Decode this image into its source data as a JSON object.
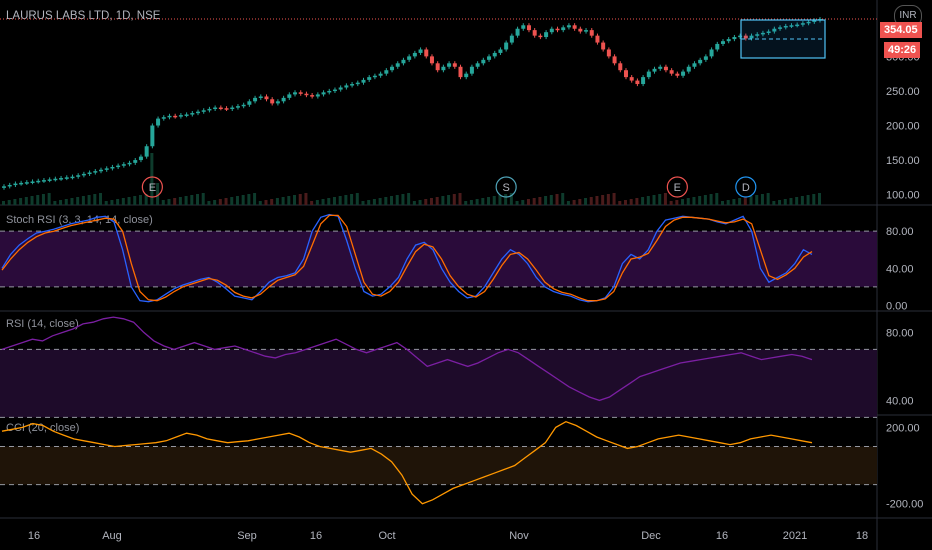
{
  "header": {
    "symbol_title": "LAURUS LABS LTD, 1D, NSE",
    "currency_button": "INR",
    "last_price_badge": "354.05",
    "countdown_badge": "49:26"
  },
  "colors": {
    "up": "#26a69a",
    "down": "#ef5350",
    "stoch_k": "#2962ff",
    "stoch_d": "#ff6d00",
    "rsi_line": "#7b1fa2",
    "cci_line": "#ff9800",
    "stoch_band": "#2a0b3a",
    "rsi_band": "#1e0b2a",
    "cci_band": "#1f1408",
    "rectangle": "#4fc3f7"
  },
  "main": {
    "price_axis_ticks": [
      "300.00",
      "250.00",
      "200.00",
      "150.00",
      "100.00"
    ],
    "events": [
      {
        "label": "E",
        "color": "#ef5350",
        "date_index": 26
      },
      {
        "label": "S",
        "color": "#4fa3b8",
        "date_index": 88
      },
      {
        "label": "E",
        "color": "#ef5350",
        "date_index": 118
      },
      {
        "label": "D",
        "color": "#2196f3",
        "date_index": 130
      }
    ]
  },
  "stoch_pane": {
    "title": "Stoch RSI (3, 3, 14, 14, close)",
    "ticks": [
      "80.00",
      "40.00",
      "0.00"
    ]
  },
  "rsi_pane": {
    "title": "RSI (14, close)",
    "ticks": [
      "80.00",
      "40.00"
    ]
  },
  "cci_pane": {
    "title": "CCI (20, close)",
    "ticks": [
      "200.00",
      "-200.00"
    ]
  },
  "time_axis": {
    "labels": [
      "16",
      "Aug",
      "Sep",
      "16",
      "Oct",
      "Nov",
      "Dec",
      "16",
      "2021",
      "18"
    ]
  },
  "chart_data": {
    "type": "candlestick",
    "title": "LAURUS LABS LTD, 1D, NSE",
    "ylim": [
      85,
      370
    ],
    "close": [
      112,
      114,
      116,
      117,
      118,
      119,
      120,
      121,
      122,
      123,
      124,
      125,
      126,
      128,
      130,
      132,
      134,
      136,
      138,
      140,
      142,
      144,
      146,
      150,
      155,
      170,
      200,
      210,
      212,
      214,
      213,
      215,
      216,
      218,
      220,
      222,
      224,
      226,
      225,
      224,
      226,
      228,
      230,
      235,
      240,
      242,
      238,
      232,
      235,
      240,
      245,
      248,
      246,
      244,
      242,
      245,
      248,
      250,
      252,
      255,
      258,
      260,
      262,
      266,
      270,
      272,
      275,
      280,
      285,
      290,
      295,
      300,
      305,
      310,
      300,
      290,
      280,
      285,
      290,
      285,
      270,
      275,
      285,
      290,
      295,
      300,
      305,
      310,
      320,
      330,
      340,
      345,
      338,
      330,
      328,
      335,
      340,
      338,
      342,
      345,
      340,
      336,
      338,
      330,
      320,
      310,
      300,
      290,
      280,
      270,
      265,
      260,
      270,
      278,
      282,
      285,
      280,
      275,
      272,
      278,
      285,
      290,
      295,
      300,
      310,
      318,
      322,
      325,
      328,
      330,
      326,
      330,
      332,
      334,
      336,
      340,
      342,
      344,
      345,
      346,
      348,
      350,
      352,
      354
    ],
    "stoch_rsi_k": [
      40,
      55,
      65,
      72,
      78,
      80,
      82,
      85,
      88,
      90,
      92,
      95,
      96,
      90,
      60,
      20,
      5,
      4,
      6,
      12,
      18,
      22,
      25,
      28,
      30,
      25,
      18,
      10,
      8,
      6,
      15,
      25,
      30,
      32,
      35,
      50,
      80,
      95,
      98,
      96,
      70,
      40,
      15,
      10,
      12,
      20,
      30,
      50,
      65,
      68,
      60,
      40,
      25,
      15,
      8,
      10,
      20,
      35,
      50,
      60,
      55,
      45,
      30,
      20,
      15,
      12,
      10,
      6,
      4,
      5,
      8,
      20,
      45,
      55,
      50,
      60,
      80,
      92,
      94,
      96,
      95,
      94,
      93,
      90,
      88,
      92,
      96,
      80,
      40,
      25,
      30,
      35,
      45,
      60,
      55
    ],
    "stoch_rsi_d": [
      38,
      50,
      60,
      68,
      74,
      78,
      80,
      83,
      86,
      88,
      90,
      92,
      94,
      93,
      80,
      45,
      15,
      6,
      5,
      9,
      15,
      20,
      23,
      26,
      29,
      27,
      22,
      14,
      10,
      8,
      12,
      20,
      27,
      30,
      33,
      42,
      65,
      88,
      97,
      97,
      85,
      55,
      25,
      12,
      10,
      15,
      25,
      42,
      58,
      66,
      63,
      50,
      32,
      20,
      12,
      9,
      15,
      28,
      43,
      55,
      57,
      50,
      38,
      25,
      18,
      14,
      12,
      8,
      5,
      5,
      7,
      15,
      35,
      50,
      52,
      56,
      70,
      85,
      92,
      95,
      95,
      94,
      93,
      91,
      89,
      90,
      93,
      88,
      60,
      32,
      28,
      33,
      40,
      52,
      58
    ],
    "rsi": [
      70,
      72,
      74,
      76,
      75,
      78,
      80,
      82,
      85,
      86,
      88,
      89,
      88,
      86,
      80,
      75,
      72,
      70,
      72,
      74,
      72,
      70,
      71,
      72,
      70,
      68,
      66,
      65,
      67,
      68,
      70,
      72,
      74,
      76,
      73,
      70,
      68,
      70,
      72,
      74,
      70,
      65,
      60,
      62,
      64,
      62,
      60,
      62,
      65,
      68,
      70,
      68,
      64,
      60,
      56,
      52,
      48,
      45,
      42,
      40,
      42,
      46,
      50,
      54,
      56,
      58,
      60,
      62,
      63,
      64,
      65,
      66,
      67,
      68,
      66,
      64,
      65,
      66,
      67,
      66,
      64
    ],
    "cci": [
      180,
      190,
      200,
      220,
      210,
      180,
      160,
      140,
      130,
      120,
      110,
      100,
      105,
      110,
      115,
      120,
      130,
      150,
      170,
      160,
      140,
      130,
      120,
      125,
      130,
      140,
      150,
      160,
      170,
      150,
      120,
      100,
      90,
      80,
      70,
      80,
      90,
      60,
      20,
      -50,
      -150,
      -200,
      -180,
      -150,
      -120,
      -100,
      -80,
      -60,
      -40,
      -20,
      0,
      40,
      80,
      120,
      200,
      230,
      210,
      180,
      150,
      130,
      110,
      90,
      100,
      120,
      140,
      150,
      160,
      150,
      140,
      130,
      120,
      110,
      120,
      140,
      150,
      160,
      150,
      140,
      130,
      120
    ]
  }
}
